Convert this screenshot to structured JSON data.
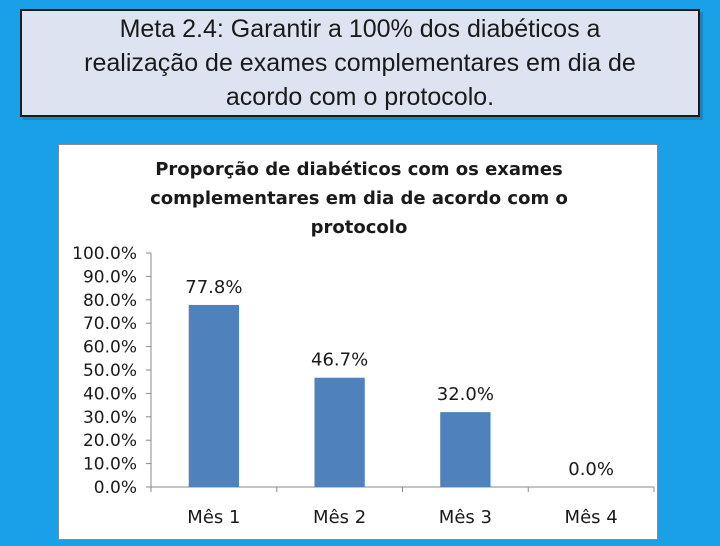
{
  "slide": {
    "title_lines": [
      "Meta 2.4: Garantir a 100% dos diabéticos a",
      "realização de exames complementares em dia de",
      "acordo com o protocolo."
    ]
  },
  "chart_data": {
    "type": "bar",
    "title": "Proporção de diabéticos com os exames complementares  em dia de acordo com o protocolo",
    "title_lines": [
      "Proporção de diabéticos com os exames",
      "complementares  em dia de acordo com o",
      "protocolo"
    ],
    "categories": [
      "Mês 1",
      "Mês 2",
      "Mês 3",
      "Mês 4"
    ],
    "values": [
      77.8,
      46.7,
      32.0,
      0.0
    ],
    "data_labels": [
      "77.8%",
      "46.7%",
      "32.0%",
      "0.0%"
    ],
    "xlabel": "",
    "ylabel": "",
    "ylim": [
      0,
      100
    ],
    "y_ticks": [
      0,
      10,
      20,
      30,
      40,
      50,
      60,
      70,
      80,
      90,
      100
    ],
    "y_tick_labels": [
      "0.0%",
      "10.0%",
      "20.0%",
      "30.0%",
      "40.0%",
      "50.0%",
      "60.0%",
      "70.0%",
      "80.0%",
      "90.0%",
      "100.0%"
    ],
    "grid": false,
    "legend": false,
    "bar_color": "#4f81bd"
  }
}
